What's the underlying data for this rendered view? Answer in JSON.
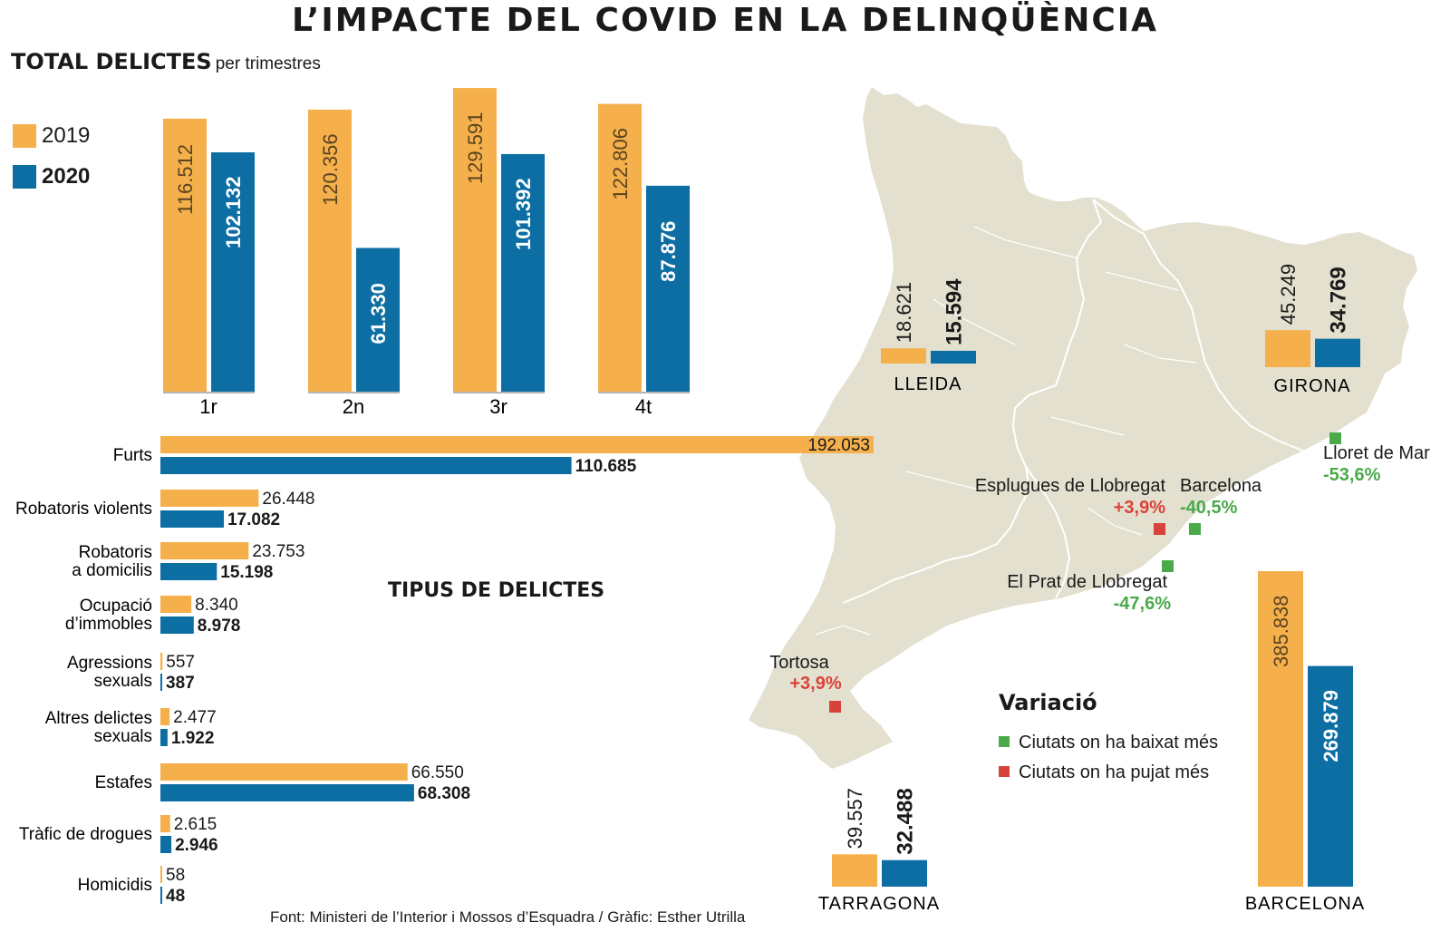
{
  "title": "L’IMPACTE DEL COVID EN LA DELINQÜÈNCIA",
  "subtitle_bold": "TOTAL DELICTES",
  "subtitle_light": "per trimestres",
  "section_title": "TIPUS DE DELICTES",
  "source": "Font: Ministeri de l’Interior i Mossos d’Esquadra / Gràfic: Esther Utrilla",
  "colors": {
    "y2019": "#f5b04c",
    "y2020": "#0d6ea3",
    "map": "#e4e0cf",
    "green": "#4aaa4a",
    "red": "#d9423a"
  },
  "legend": [
    {
      "label": "2019",
      "color": "#f5b04c"
    },
    {
      "label": "2020",
      "color": "#0d6ea3"
    }
  ],
  "variacio": {
    "title": "Variació",
    "items": [
      {
        "label": "Ciutats on ha baixat més",
        "color": "#4aaa4a"
      },
      {
        "label": "Ciutats on ha pujat més",
        "color": "#d9423a"
      }
    ]
  },
  "chart_data": [
    {
      "type": "bar",
      "title": "TOTAL DELICTES per trimestres",
      "categories": [
        "1r",
        "2n",
        "3r",
        "4t"
      ],
      "series": [
        {
          "name": "2019",
          "values": [
            116512,
            120356,
            129591,
            122806
          ],
          "labels": [
            "116.512",
            "120.356",
            "129.591",
            "122.806"
          ]
        },
        {
          "name": "2020",
          "values": [
            102132,
            61330,
            101392,
            87876
          ],
          "labels": [
            "102.132",
            "61.330",
            "101.392",
            "87.876"
          ]
        }
      ],
      "ylim": [
        0,
        130000
      ]
    },
    {
      "type": "bar",
      "orientation": "horizontal",
      "title": "TIPUS DE DELICTES",
      "categories": [
        [
          "Furts"
        ],
        [
          "Robatoris violents"
        ],
        [
          "Robatoris",
          "a domicilis"
        ],
        [
          "Ocupació",
          "d’immobles"
        ],
        [
          "Agressions",
          "sexuals"
        ],
        [
          "Altres delictes",
          "sexuals"
        ],
        [
          "Estafes"
        ],
        [
          "Tràfic de drogues"
        ],
        [
          "Homicidis"
        ]
      ],
      "series": [
        {
          "name": "2019",
          "values": [
            192053,
            26448,
            23753,
            8340,
            557,
            2477,
            66550,
            2615,
            58
          ],
          "labels": [
            "192.053",
            "26.448",
            "23.753",
            "8.340",
            "557",
            "2.477",
            "66.550",
            "2.615",
            "58"
          ]
        },
        {
          "name": "2020",
          "values": [
            110685,
            17082,
            15198,
            8978,
            387,
            1922,
            68308,
            2946,
            48
          ],
          "labels": [
            "110.685",
            "17.082",
            "15.198",
            "8.978",
            "387",
            "1.922",
            "68.308",
            "2.946",
            "48"
          ]
        }
      ],
      "xlim": [
        0,
        192053
      ]
    },
    {
      "type": "bar",
      "title": "",
      "categories": [
        "LLEIDA",
        "GIRONA",
        "TARRAGONA",
        "BARCELONA"
      ],
      "series": [
        {
          "name": "2019",
          "values": [
            18621,
            45249,
            39557,
            385838
          ],
          "labels": [
            "18.621",
            "45.249",
            "39.557",
            "385.838"
          ]
        },
        {
          "name": "2020",
          "values": [
            15594,
            34769,
            32488,
            269879
          ],
          "labels": [
            "15.594",
            "34.769",
            "32.488",
            "269.879"
          ]
        }
      ]
    }
  ],
  "cities": [
    {
      "name": "Lloret de Mar",
      "change": "-53,6%",
      "type": "green"
    },
    {
      "name": "Esplugues de Llobregat",
      "change": "+3,9%",
      "type": "red"
    },
    {
      "name": "Barcelona",
      "change": "-40,5%",
      "type": "green"
    },
    {
      "name": "El Prat de Llobregat",
      "change": "-47,6%",
      "type": "green"
    },
    {
      "name": "Tortosa",
      "change": "+3,9%",
      "type": "red"
    }
  ]
}
